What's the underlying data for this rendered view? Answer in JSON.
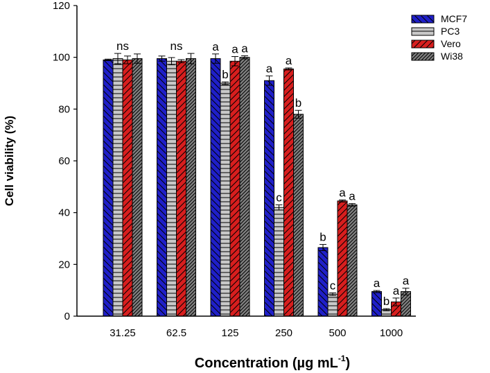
{
  "chart_data": {
    "type": "bar",
    "categories": [
      "31.25",
      "62.5",
      "125",
      "250",
      "500",
      "1000"
    ],
    "series": [
      {
        "name": "MCF7",
        "color": "#1f1fc8",
        "pattern": "diag-down",
        "values": [
          99,
          99.5,
          99.5,
          91,
          26.5,
          9.5
        ],
        "errors": [
          0.3,
          1.0,
          1.8,
          1.8,
          1.2,
          0.4
        ]
      },
      {
        "name": "PC3",
        "color": "#c8c8c8",
        "pattern": "horizontal",
        "values": [
          99.5,
          98.5,
          90,
          42,
          8.5,
          2.5
        ],
        "errors": [
          2.0,
          1.4,
          0.5,
          1.0,
          0.5,
          0.4
        ]
      },
      {
        "name": "Vero",
        "color": "#d81e1e",
        "pattern": "diag-up",
        "values": [
          99,
          98.5,
          98.5,
          95.5,
          44.5,
          5.5
        ],
        "errors": [
          1.5,
          0.6,
          1.8,
          0.4,
          0.4,
          1.5
        ]
      },
      {
        "name": "Wi38",
        "color": "#808080",
        "pattern": "diag-up-dense",
        "values": [
          99.5,
          99.5,
          100,
          78,
          43,
          9.5
        ],
        "errors": [
          1.8,
          2.0,
          0.6,
          1.5,
          0.5,
          1.3
        ]
      }
    ],
    "annotations": [
      {
        "category": "31.25",
        "text": "ns"
      },
      {
        "category": "62.5",
        "text": "ns"
      },
      {
        "category": "125",
        "series": "MCF7",
        "text": "a"
      },
      {
        "category": "125",
        "series": "PC3",
        "text": "b"
      },
      {
        "category": "125",
        "series": "Vero",
        "text": "a"
      },
      {
        "category": "125",
        "series": "Wi38",
        "text": "a"
      },
      {
        "category": "250",
        "series": "MCF7",
        "text": "a"
      },
      {
        "category": "250",
        "series": "PC3",
        "text": "c"
      },
      {
        "category": "250",
        "series": "Vero",
        "text": "a"
      },
      {
        "category": "250",
        "series": "Wi38",
        "text": "b"
      },
      {
        "category": "500",
        "series": "MCF7",
        "text": "b"
      },
      {
        "category": "500",
        "series": "PC3",
        "text": "c"
      },
      {
        "category": "500",
        "series": "Vero",
        "text": "a"
      },
      {
        "category": "500",
        "series": "Wi38",
        "text": "a"
      },
      {
        "category": "1000",
        "series": "MCF7",
        "text": "a"
      },
      {
        "category": "1000",
        "series": "PC3",
        "text": "b"
      },
      {
        "category": "1000",
        "series": "Vero",
        "text": "a"
      },
      {
        "category": "1000",
        "series": "Wi38",
        "text": "a"
      }
    ],
    "title": "",
    "xlabel": "Concentration (µg mL",
    "xlabel_superscript": "-1",
    "xlabel_suffix": ")",
    "ylabel": "Cell viability (%)",
    "ylim": [
      0,
      120
    ],
    "yticks": [
      0,
      20,
      40,
      60,
      80,
      100,
      120
    ],
    "grid": false,
    "legend_position": "top-right"
  }
}
